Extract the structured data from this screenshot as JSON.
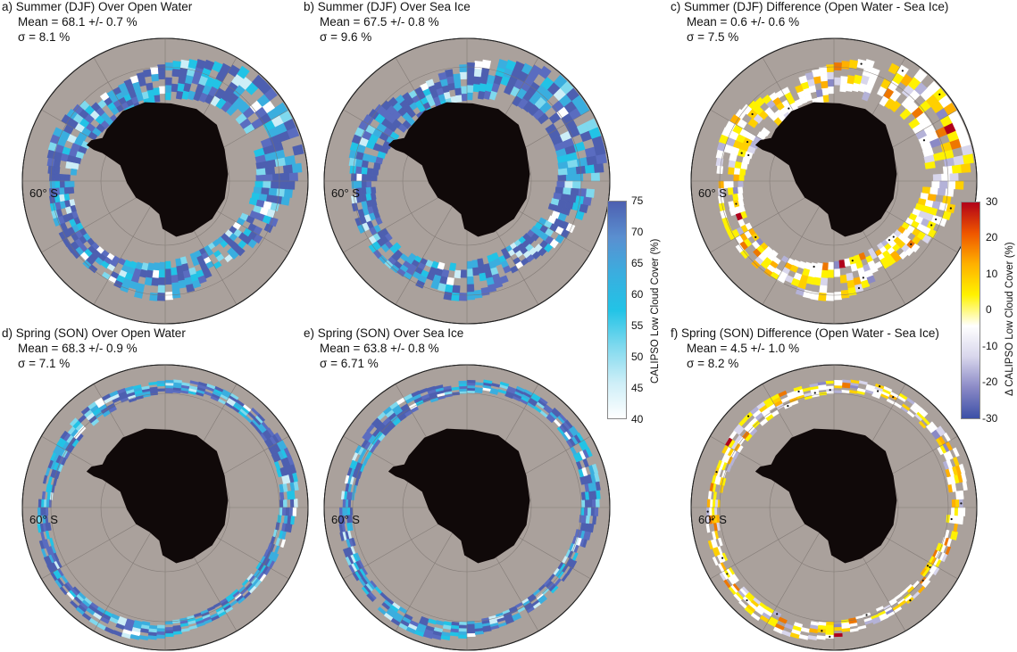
{
  "chart_data": [
    {
      "type": "heatmap",
      "panel_id": "a",
      "title": "a) Summer (DJF) Over Open Water",
      "mean_text": "Mean = 68.1 +/- 0.7 %",
      "sigma_text": "σ = 8.1 %",
      "mean": 68.1,
      "mean_err": 0.7,
      "sigma": 8.1,
      "season": "DJF",
      "colorbar": "low",
      "latitude_label": "60° S"
    },
    {
      "type": "heatmap",
      "panel_id": "b",
      "title": "b) Summer (DJF) Over Sea Ice",
      "mean_text": "Mean = 67.5 +/- 0.8 %",
      "sigma_text": "σ = 9.6 %",
      "mean": 67.5,
      "mean_err": 0.8,
      "sigma": 9.6,
      "season": "DJF",
      "colorbar": "low",
      "latitude_label": "60° S"
    },
    {
      "type": "heatmap",
      "panel_id": "c",
      "title": "c) Summer (DJF) Difference (Open Water - Sea Ice)",
      "mean_text": "Mean = 0.6 +/- 0.6 %",
      "sigma_text": "σ = 7.5 %",
      "mean": 0.6,
      "mean_err": 0.6,
      "sigma": 7.5,
      "season": "DJF",
      "colorbar": "diff",
      "latitude_label": "60° S"
    },
    {
      "type": "heatmap",
      "panel_id": "d",
      "title": "d) Spring (SON) Over Open Water",
      "mean_text": "Mean = 68.3 +/- 0.9 %",
      "sigma_text": "σ = 7.1 %",
      "mean": 68.3,
      "mean_err": 0.9,
      "sigma": 7.1,
      "season": "SON",
      "colorbar": "low",
      "latitude_label": "60° S"
    },
    {
      "type": "heatmap",
      "panel_id": "e",
      "title": "e) Spring (SON) Over Sea Ice",
      "mean_text": "Mean = 63.8 +/- 0.8 %",
      "sigma_text": "σ = 6.71 %",
      "mean": 63.8,
      "mean_err": 0.8,
      "sigma": 6.71,
      "season": "SON",
      "colorbar": "low",
      "latitude_label": "60° S"
    },
    {
      "type": "heatmap",
      "panel_id": "f",
      "title": "f) Spring (SON) Difference (Open Water - Sea Ice)",
      "mean_text": "Mean = 4.5 +/- 1.0 %",
      "sigma_text": "σ = 8.2 %",
      "mean": 4.5,
      "mean_err": 1.0,
      "sigma": 8.2,
      "season": "SON",
      "colorbar": "diff",
      "latitude_label": "60° S"
    }
  ],
  "colorbars": {
    "low": {
      "label": "CALIPSO Low Cloud Cover (%)",
      "range": [
        40,
        75
      ],
      "ticks": [
        "75",
        "70",
        "65",
        "60",
        "55",
        "50",
        "45",
        "40"
      ],
      "colors": [
        "#ffffff",
        "#cdeef7",
        "#7fd9ee",
        "#22c3e6",
        "#3aaedf",
        "#5a8fd0",
        "#4d5fb0"
      ]
    },
    "diff": {
      "label": "Δ CALIPSO Low Cloud Cover (%)",
      "range": [
        -30,
        30
      ],
      "ticks": [
        "30",
        "20",
        "10",
        "0",
        "-10",
        "-20",
        "-30"
      ],
      "colors": [
        "#3b4fa6",
        "#8a89c6",
        "#d8d6ec",
        "#ffffff",
        "#fff200",
        "#ffb000",
        "#ee5500",
        "#b0001a"
      ]
    }
  },
  "colors": {
    "ocean": "#aaa19c",
    "land": "#100909"
  }
}
